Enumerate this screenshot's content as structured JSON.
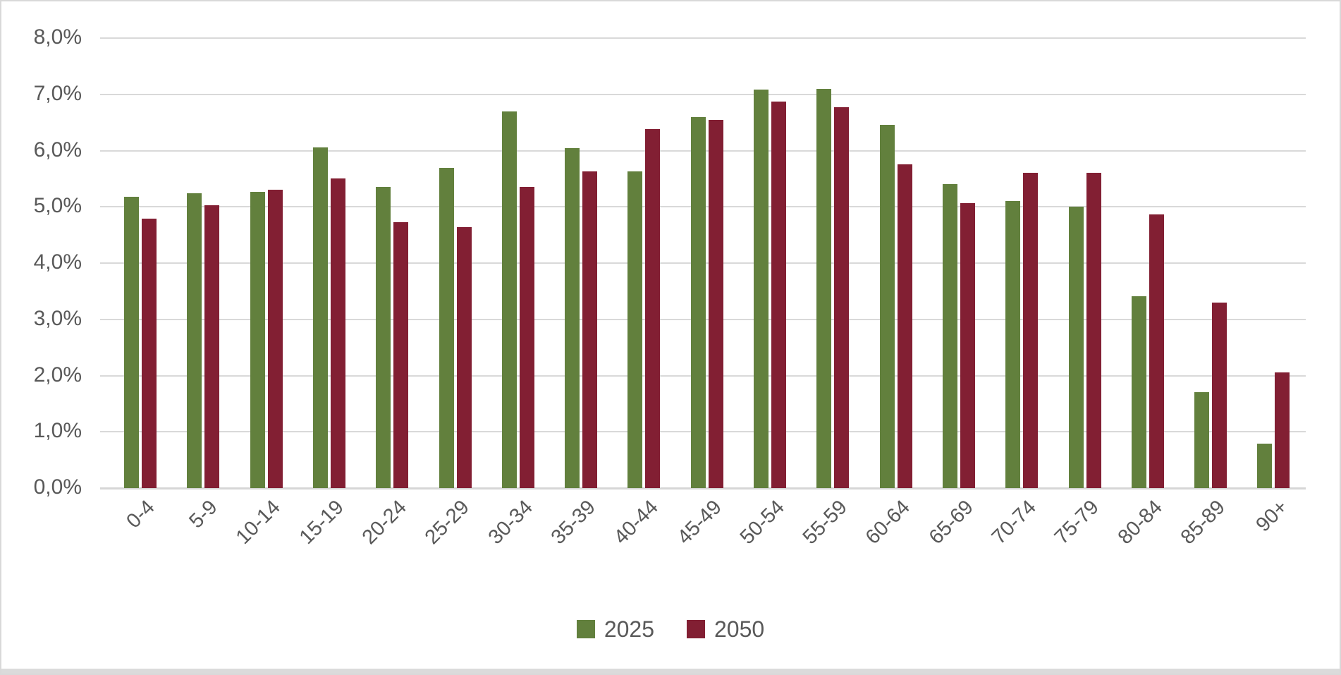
{
  "chart_data": {
    "type": "bar",
    "title": "",
    "categories": [
      "0-4",
      "5-9",
      "10-14",
      "15-19",
      "20-24",
      "25-29",
      "30-34",
      "35-39",
      "40-44",
      "45-49",
      "50-54",
      "55-59",
      "60-64",
      "65-69",
      "70-74",
      "75-79",
      "80-84",
      "85-89",
      "90+"
    ],
    "series": [
      {
        "name": "2025",
        "color": "#62803D",
        "values": [
          5.18,
          5.24,
          5.27,
          6.06,
          5.35,
          5.69,
          6.7,
          6.04,
          5.63,
          6.6,
          7.08,
          7.1,
          6.46,
          5.4,
          5.1,
          5.0,
          3.41,
          1.71,
          0.79
        ]
      },
      {
        "name": "2050",
        "color": "#821F33",
        "values": [
          4.79,
          5.03,
          5.31,
          5.5,
          4.73,
          4.64,
          5.35,
          5.63,
          6.38,
          6.55,
          6.87,
          6.77,
          5.75,
          5.06,
          5.6,
          5.61,
          4.87,
          3.3,
          2.06
        ]
      }
    ],
    "y_axis": {
      "min": 0,
      "max": 8,
      "step": 1,
      "tick_labels": [
        "0,0%",
        "1,0%",
        "2,0%",
        "3,0%",
        "4,0%",
        "5,0%",
        "6,0%",
        "7,0%",
        "8,0%"
      ]
    },
    "x_tick_rotation_deg": 45,
    "grid": true,
    "legend_position": "bottom",
    "colors": {
      "gridline": "#D9D9D9",
      "tick_text": "#595959",
      "background": "#FFFFFF",
      "border": "#D9D9D9"
    }
  }
}
